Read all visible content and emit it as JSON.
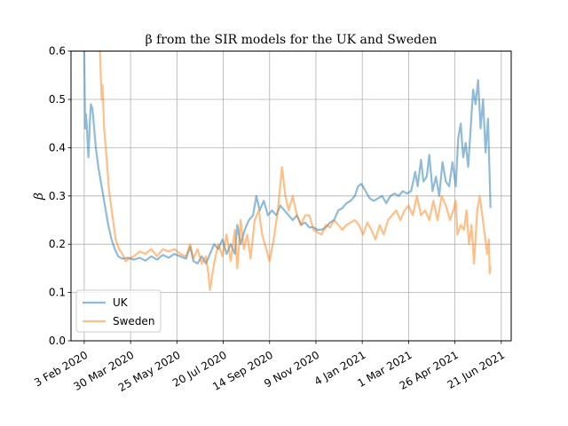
{
  "chart_data": {
    "type": "line",
    "title": "β from the SIR models for the UK and Sweden",
    "xlabel": "",
    "ylabel": "β",
    "x_ticks": [
      {
        "date": "2020-02-03",
        "label": "3 Feb 2020"
      },
      {
        "date": "2020-03-30",
        "label": "30 Mar 2020"
      },
      {
        "date": "2020-05-25",
        "label": "25 May 2020"
      },
      {
        "date": "2020-07-20",
        "label": "20 Jul 2020"
      },
      {
        "date": "2020-09-14",
        "label": "14 Sep 2020"
      },
      {
        "date": "2020-11-09",
        "label": "9 Nov 2020"
      },
      {
        "date": "2021-01-04",
        "label": "4 Jan 2021"
      },
      {
        "date": "2021-03-01",
        "label": "1 Mar 2021"
      },
      {
        "date": "2021-04-26",
        "label": "26 Apr 2021"
      },
      {
        "date": "2021-06-21",
        "label": "21 Jun 2021"
      }
    ],
    "xlim": [
      "2020-01-18",
      "2021-07-03"
    ],
    "ylim": [
      0,
      0.6
    ],
    "y_ticks": [
      {
        "value": 0.0,
        "label": "0.0"
      },
      {
        "value": 0.1,
        "label": "0.1"
      },
      {
        "value": 0.2,
        "label": "0.2"
      },
      {
        "value": 0.3,
        "label": "0.3"
      },
      {
        "value": 0.4,
        "label": "0.4"
      },
      {
        "value": 0.5,
        "label": "0.5"
      },
      {
        "value": 0.6,
        "label": "0.6"
      }
    ],
    "grid": true,
    "legend_position": "lower-left",
    "series": [
      {
        "name": "UK",
        "color": "#1f77b4",
        "points": [
          [
            "2020-02-03",
            0.6
          ],
          [
            "2020-02-04",
            0.44
          ],
          [
            "2020-02-05",
            0.47
          ],
          [
            "2020-02-06",
            0.45
          ],
          [
            "2020-02-08",
            0.38
          ],
          [
            "2020-02-10",
            0.46
          ],
          [
            "2020-02-11",
            0.49
          ],
          [
            "2020-02-13",
            0.48
          ],
          [
            "2020-02-15",
            0.44
          ],
          [
            "2020-02-17",
            0.4
          ],
          [
            "2020-02-20",
            0.36
          ],
          [
            "2020-02-24",
            0.32
          ],
          [
            "2020-02-28",
            0.28
          ],
          [
            "2020-03-03",
            0.24
          ],
          [
            "2020-03-07",
            0.21
          ],
          [
            "2020-03-11",
            0.19
          ],
          [
            "2020-03-15",
            0.175
          ],
          [
            "2020-03-20",
            0.17
          ],
          [
            "2020-03-27",
            0.172
          ],
          [
            "2020-04-03",
            0.168
          ],
          [
            "2020-04-10",
            0.172
          ],
          [
            "2020-04-17",
            0.166
          ],
          [
            "2020-04-24",
            0.175
          ],
          [
            "2020-05-01",
            0.168
          ],
          [
            "2020-05-08",
            0.178
          ],
          [
            "2020-05-15",
            0.172
          ],
          [
            "2020-05-22",
            0.18
          ],
          [
            "2020-05-29",
            0.175
          ],
          [
            "2020-06-05",
            0.17
          ],
          [
            "2020-06-10",
            0.195
          ],
          [
            "2020-06-14",
            0.165
          ],
          [
            "2020-06-19",
            0.16
          ],
          [
            "2020-06-24",
            0.175
          ],
          [
            "2020-06-29",
            0.16
          ],
          [
            "2020-07-04",
            0.18
          ],
          [
            "2020-07-09",
            0.2
          ],
          [
            "2020-07-14",
            0.19
          ],
          [
            "2020-07-19",
            0.21
          ],
          [
            "2020-07-24",
            0.18
          ],
          [
            "2020-07-29",
            0.2
          ],
          [
            "2020-08-03",
            0.18
          ],
          [
            "2020-08-06",
            0.24
          ],
          [
            "2020-08-10",
            0.2
          ],
          [
            "2020-08-15",
            0.23
          ],
          [
            "2020-08-20",
            0.25
          ],
          [
            "2020-08-25",
            0.26
          ],
          [
            "2020-08-29",
            0.3
          ],
          [
            "2020-09-02",
            0.27
          ],
          [
            "2020-09-07",
            0.29
          ],
          [
            "2020-09-12",
            0.26
          ],
          [
            "2020-09-17",
            0.27
          ],
          [
            "2020-09-22",
            0.26
          ],
          [
            "2020-09-27",
            0.28
          ],
          [
            "2020-10-02",
            0.27
          ],
          [
            "2020-10-07",
            0.26
          ],
          [
            "2020-10-12",
            0.25
          ],
          [
            "2020-10-17",
            0.26
          ],
          [
            "2020-10-22",
            0.24
          ],
          [
            "2020-10-27",
            0.245
          ],
          [
            "2020-11-01",
            0.235
          ],
          [
            "2020-11-06",
            0.235
          ],
          [
            "2020-11-11",
            0.23
          ],
          [
            "2020-11-16",
            0.23
          ],
          [
            "2020-11-21",
            0.235
          ],
          [
            "2020-11-26",
            0.245
          ],
          [
            "2020-12-01",
            0.25
          ],
          [
            "2020-12-06",
            0.27
          ],
          [
            "2020-12-11",
            0.275
          ],
          [
            "2020-12-16",
            0.285
          ],
          [
            "2020-12-21",
            0.29
          ],
          [
            "2020-12-26",
            0.3
          ],
          [
            "2020-12-30",
            0.32
          ],
          [
            "2021-01-03",
            0.325
          ],
          [
            "2021-01-08",
            0.31
          ],
          [
            "2021-01-13",
            0.295
          ],
          [
            "2021-01-18",
            0.29
          ],
          [
            "2021-01-23",
            0.295
          ],
          [
            "2021-01-28",
            0.3
          ],
          [
            "2021-02-02",
            0.285
          ],
          [
            "2021-02-07",
            0.3
          ],
          [
            "2021-02-12",
            0.305
          ],
          [
            "2021-02-17",
            0.3
          ],
          [
            "2021-02-22",
            0.31
          ],
          [
            "2021-02-27",
            0.305
          ],
          [
            "2021-03-04",
            0.31
          ],
          [
            "2021-03-09",
            0.35
          ],
          [
            "2021-03-12",
            0.32
          ],
          [
            "2021-03-16",
            0.375
          ],
          [
            "2021-03-19",
            0.33
          ],
          [
            "2021-03-23",
            0.34
          ],
          [
            "2021-03-26",
            0.385
          ],
          [
            "2021-03-30",
            0.31
          ],
          [
            "2021-04-03",
            0.34
          ],
          [
            "2021-04-07",
            0.3
          ],
          [
            "2021-04-11",
            0.37
          ],
          [
            "2021-04-15",
            0.33
          ],
          [
            "2021-04-19",
            0.32
          ],
          [
            "2021-04-23",
            0.37
          ],
          [
            "2021-04-27",
            0.32
          ],
          [
            "2021-04-30",
            0.42
          ],
          [
            "2021-05-03",
            0.45
          ],
          [
            "2021-05-06",
            0.38
          ],
          [
            "2021-05-09",
            0.41
          ],
          [
            "2021-05-12",
            0.36
          ],
          [
            "2021-05-15",
            0.44
          ],
          [
            "2021-05-18",
            0.52
          ],
          [
            "2021-05-21",
            0.49
          ],
          [
            "2021-05-24",
            0.54
          ],
          [
            "2021-05-27",
            0.44
          ],
          [
            "2021-05-30",
            0.5
          ],
          [
            "2021-06-02",
            0.39
          ],
          [
            "2021-06-05",
            0.46
          ],
          [
            "2021-06-08",
            0.275
          ]
        ]
      },
      {
        "name": "Sweden",
        "color": "#ff7f0e",
        "points": [
          [
            "2020-02-22",
            0.6
          ],
          [
            "2020-02-24",
            0.5
          ],
          [
            "2020-02-25",
            0.53
          ],
          [
            "2020-02-27",
            0.44
          ],
          [
            "2020-03-01",
            0.38
          ],
          [
            "2020-03-04",
            0.31
          ],
          [
            "2020-03-08",
            0.26
          ],
          [
            "2020-03-12",
            0.21
          ],
          [
            "2020-03-16",
            0.19
          ],
          [
            "2020-03-20",
            0.18
          ],
          [
            "2020-03-24",
            0.165
          ],
          [
            "2020-03-28",
            0.17
          ],
          [
            "2020-04-03",
            0.175
          ],
          [
            "2020-04-10",
            0.185
          ],
          [
            "2020-04-17",
            0.18
          ],
          [
            "2020-04-24",
            0.19
          ],
          [
            "2020-05-01",
            0.175
          ],
          [
            "2020-05-08",
            0.19
          ],
          [
            "2020-05-15",
            0.185
          ],
          [
            "2020-05-22",
            0.19
          ],
          [
            "2020-05-29",
            0.18
          ],
          [
            "2020-06-05",
            0.175
          ],
          [
            "2020-06-10",
            0.2
          ],
          [
            "2020-06-14",
            0.17
          ],
          [
            "2020-06-19",
            0.19
          ],
          [
            "2020-06-24",
            0.16
          ],
          [
            "2020-06-29",
            0.175
          ],
          [
            "2020-07-02",
            0.14
          ],
          [
            "2020-07-04",
            0.105
          ],
          [
            "2020-07-07",
            0.14
          ],
          [
            "2020-07-10",
            0.17
          ],
          [
            "2020-07-14",
            0.2
          ],
          [
            "2020-07-19",
            0.175
          ],
          [
            "2020-07-24",
            0.22
          ],
          [
            "2020-07-29",
            0.165
          ],
          [
            "2020-08-03",
            0.23
          ],
          [
            "2020-08-06",
            0.15
          ],
          [
            "2020-08-10",
            0.25
          ],
          [
            "2020-08-14",
            0.19
          ],
          [
            "2020-08-18",
            0.22
          ],
          [
            "2020-08-22",
            0.17
          ],
          [
            "2020-08-27",
            0.25
          ],
          [
            "2020-09-01",
            0.27
          ],
          [
            "2020-09-05",
            0.22
          ],
          [
            "2020-09-10",
            0.19
          ],
          [
            "2020-09-14",
            0.165
          ],
          [
            "2020-09-19",
            0.21
          ],
          [
            "2020-09-24",
            0.27
          ],
          [
            "2020-09-29",
            0.36
          ],
          [
            "2020-10-03",
            0.3
          ],
          [
            "2020-10-07",
            0.27
          ],
          [
            "2020-10-12",
            0.3
          ],
          [
            "2020-10-17",
            0.26
          ],
          [
            "2020-10-22",
            0.24
          ],
          [
            "2020-10-27",
            0.26
          ],
          [
            "2020-11-01",
            0.26
          ],
          [
            "2020-11-06",
            0.23
          ],
          [
            "2020-11-11",
            0.225
          ],
          [
            "2020-11-16",
            0.22
          ],
          [
            "2020-11-21",
            0.24
          ],
          [
            "2020-11-26",
            0.235
          ],
          [
            "2020-12-01",
            0.25
          ],
          [
            "2020-12-06",
            0.24
          ],
          [
            "2020-12-11",
            0.23
          ],
          [
            "2020-12-16",
            0.24
          ],
          [
            "2020-12-21",
            0.245
          ],
          [
            "2020-12-26",
            0.25
          ],
          [
            "2020-12-31",
            0.24
          ],
          [
            "2021-01-05",
            0.22
          ],
          [
            "2021-01-10",
            0.245
          ],
          [
            "2021-01-15",
            0.23
          ],
          [
            "2021-01-20",
            0.21
          ],
          [
            "2021-01-25",
            0.24
          ],
          [
            "2021-01-30",
            0.22
          ],
          [
            "2021-02-04",
            0.25
          ],
          [
            "2021-02-09",
            0.26
          ],
          [
            "2021-02-14",
            0.27
          ],
          [
            "2021-02-19",
            0.25
          ],
          [
            "2021-02-24",
            0.27
          ],
          [
            "2021-03-01",
            0.28
          ],
          [
            "2021-03-06",
            0.26
          ],
          [
            "2021-03-11",
            0.3
          ],
          [
            "2021-03-16",
            0.26
          ],
          [
            "2021-03-21",
            0.27
          ],
          [
            "2021-03-26",
            0.25
          ],
          [
            "2021-03-31",
            0.29
          ],
          [
            "2021-04-05",
            0.25
          ],
          [
            "2021-04-10",
            0.3
          ],
          [
            "2021-04-15",
            0.28
          ],
          [
            "2021-04-20",
            0.25
          ],
          [
            "2021-04-24",
            0.27
          ],
          [
            "2021-04-27",
            0.29
          ],
          [
            "2021-04-29",
            0.22
          ],
          [
            "2021-05-03",
            0.24
          ],
          [
            "2021-05-07",
            0.23
          ],
          [
            "2021-05-10",
            0.27
          ],
          [
            "2021-05-13",
            0.2
          ],
          [
            "2021-05-16",
            0.24
          ],
          [
            "2021-05-19",
            0.16
          ],
          [
            "2021-05-23",
            0.27
          ],
          [
            "2021-05-26",
            0.3
          ],
          [
            "2021-05-29",
            0.26
          ],
          [
            "2021-06-01",
            0.22
          ],
          [
            "2021-06-04",
            0.18
          ],
          [
            "2021-06-06",
            0.21
          ],
          [
            "2021-06-07",
            0.14
          ],
          [
            "2021-06-08",
            0.155
          ]
        ]
      }
    ]
  }
}
